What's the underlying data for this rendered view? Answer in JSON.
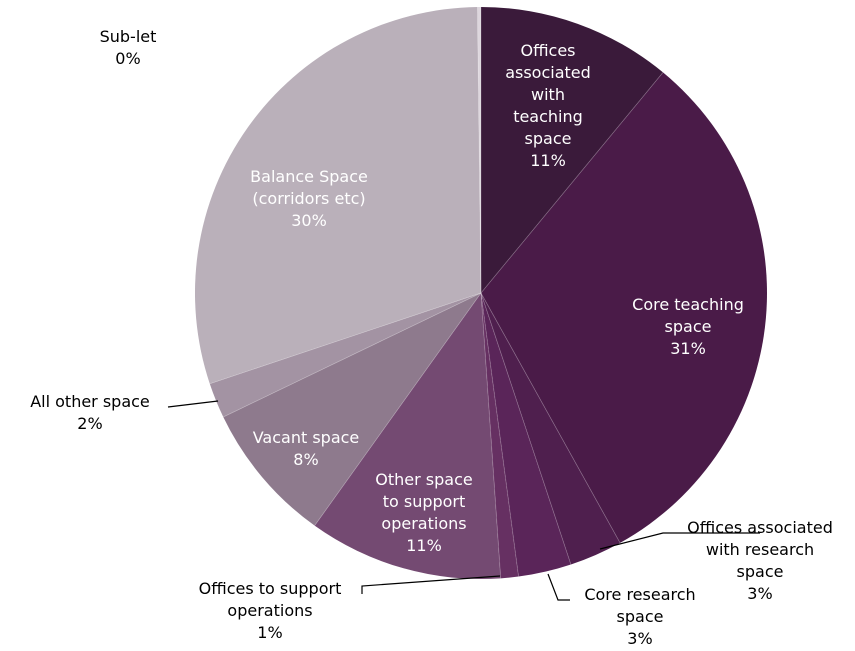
{
  "chart_data": {
    "type": "pie",
    "start_angle_deg": 0,
    "direction": "clockwise",
    "legend": "none",
    "slices": [
      {
        "label": [
          "Offices",
          "associated",
          "with",
          "teaching",
          "space"
        ],
        "pct_label": "11%",
        "value": 11,
        "color": "#3a1a3a"
      },
      {
        "label": [
          "Core teaching",
          "space"
        ],
        "pct_label": "31%",
        "value": 31,
        "color": "#4a1b48"
      },
      {
        "label": [
          "Offices associated",
          "with research",
          "space"
        ],
        "pct_label": "3%",
        "value": 3,
        "color": "#4f1f4e"
      },
      {
        "label": [
          "Core research",
          "space"
        ],
        "pct_label": "3%",
        "value": 3,
        "color": "#5a2559"
      },
      {
        "label": [
          "Offices to support",
          "operations"
        ],
        "pct_label": "1%",
        "value": 1,
        "color": "#663062"
      },
      {
        "label": [
          "Other space",
          "to support",
          "operations"
        ],
        "pct_label": "11%",
        "value": 11,
        "color": "#744a72"
      },
      {
        "label": [
          "Vacant space"
        ],
        "pct_label": "8%",
        "value": 8,
        "color": "#8e7a8d"
      },
      {
        "label": [
          "All other space"
        ],
        "pct_label": "2%",
        "value": 2,
        "color": "#a393a3"
      },
      {
        "label": [
          "Balance Space",
          "(corridors etc)"
        ],
        "pct_label": "30%",
        "value": 30,
        "color": "#bab0ba"
      },
      {
        "label": [
          "Sub-let"
        ],
        "pct_label": "0%",
        "value": 0.2,
        "color": "#ddd6dd"
      }
    ]
  }
}
